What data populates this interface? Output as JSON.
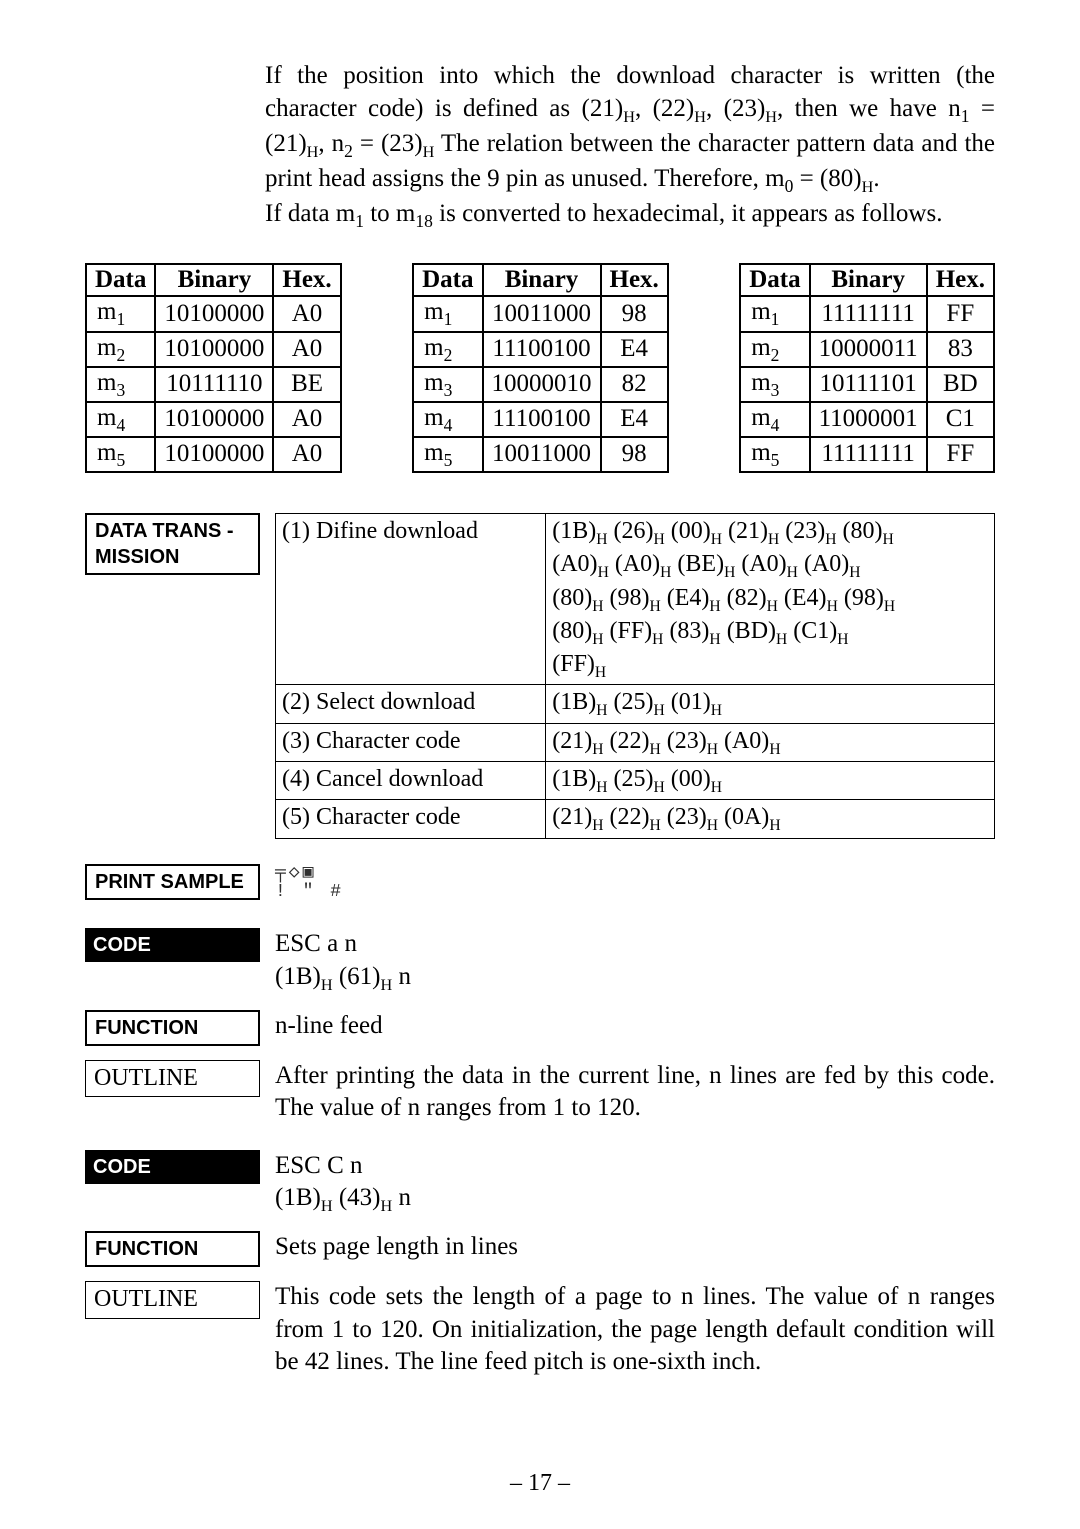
{
  "intro": {
    "p1_a": "If the position into which the download character is written (the character code)  is defined as (21)",
    "p1_b": ",  (22)",
    "p1_c": ",  (23)",
    "p1_d": ",  then we have n",
    "p1_e": " = (21)",
    "p1_f": ", n",
    "p1_g": " = (23)",
    "p1_h": " The relation between the character pattern data and the print head assigns the 9 pin as unused. Therefore, m",
    "p1_i": " = (80)",
    "p1_j": ".",
    "p2_a": "If data m",
    "p2_b": " to m",
    "p2_c": " is converted to hexadecimal, it appears as follows."
  },
  "binary_tables": {
    "headers": [
      "Data",
      "Binary",
      "Hex."
    ],
    "t1": [
      {
        "d": "m",
        "s": "1",
        "b": "10100000",
        "h": "A0"
      },
      {
        "d": "m",
        "s": "2",
        "b": "10100000",
        "h": "A0"
      },
      {
        "d": "m",
        "s": "3",
        "b": "10111110",
        "h": "BE"
      },
      {
        "d": "m",
        "s": "4",
        "b": "10100000",
        "h": "A0"
      },
      {
        "d": "m",
        "s": "5",
        "b": "10100000",
        "h": "A0"
      }
    ],
    "t2": [
      {
        "d": "m",
        "s": "1",
        "b": "10011000",
        "h": "98"
      },
      {
        "d": "m",
        "s": "2",
        "b": "11100100",
        "h": "E4"
      },
      {
        "d": "m",
        "s": "3",
        "b": "10000010",
        "h": "82"
      },
      {
        "d": "m",
        "s": "4",
        "b": "11100100",
        "h": "E4"
      },
      {
        "d": "m",
        "s": "5",
        "b": "10011000",
        "h": "98"
      }
    ],
    "t3": [
      {
        "d": "m",
        "s": "1",
        "b": "11111111",
        "h": "FF"
      },
      {
        "d": "m",
        "s": "2",
        "b": "10000011",
        "h": "83"
      },
      {
        "d": "m",
        "s": "3",
        "b": "10111101",
        "h": "BD"
      },
      {
        "d": "m",
        "s": "4",
        "b": "11000001",
        "h": "C1"
      },
      {
        "d": "m",
        "s": "5",
        "b": "11111111",
        "h": "FF"
      }
    ]
  },
  "data_trans": {
    "label_l1": "DATA  TRANS -",
    "label_l2": "MISSION",
    "rows": [
      {
        "l": "(1) Difine download",
        "r_segs": [
          [
            [
              "(1B)",
              "H"
            ],
            [
              " (26)",
              "H"
            ],
            [
              " (00)",
              "H"
            ],
            [
              " (21)",
              "H"
            ],
            [
              " (23)",
              "H"
            ],
            [
              " (80)",
              "H"
            ]
          ],
          [
            [
              "(A0)",
              "H"
            ],
            [
              " (A0)",
              "H"
            ],
            [
              " (BE)",
              "H"
            ],
            [
              " (A0)",
              "H"
            ],
            [
              " (A0)",
              "H"
            ]
          ],
          [
            [
              "(80)",
              "H"
            ],
            [
              " (98)",
              "H"
            ],
            [
              " (E4)",
              "H"
            ],
            [
              " (82)",
              "H"
            ],
            [
              " (E4)",
              "H"
            ],
            [
              " (98)",
              "H"
            ]
          ],
          [
            [
              "(80)",
              "H"
            ],
            [
              " (FF)",
              "H"
            ],
            [
              " (83)",
              "H"
            ],
            [
              " (BD)",
              "H"
            ],
            [
              " (C1)",
              "H"
            ]
          ],
          [
            [
              "(FF)",
              "H"
            ]
          ]
        ]
      },
      {
        "l": "(2) Select download",
        "r_segs": [
          [
            [
              "(1B)",
              "H"
            ],
            [
              " (25)",
              "H"
            ],
            [
              " (01)",
              "H"
            ]
          ]
        ]
      },
      {
        "l": "(3) Character code",
        "r_segs": [
          [
            [
              "(21)",
              "H"
            ],
            [
              " (22)",
              "H"
            ],
            [
              " (23)",
              "H"
            ],
            [
              " (A0)",
              "H"
            ]
          ]
        ]
      },
      {
        "l": "(4) Cancel download",
        "r_segs": [
          [
            [
              "(1B)",
              "H"
            ],
            [
              " (25)",
              "H"
            ],
            [
              " (00)",
              "H"
            ]
          ]
        ]
      },
      {
        "l": "(5) Character code",
        "r_segs": [
          [
            [
              "(21)",
              "H"
            ],
            [
              " (22)",
              "H"
            ],
            [
              " (23)",
              "H"
            ],
            [
              " (0A)",
              "H"
            ]
          ]
        ]
      }
    ]
  },
  "print_sample": {
    "label": "PRINT SAMPLE",
    "line1": "╤◇▣",
    "line2": "! \" #"
  },
  "code1": {
    "code_label": "CODE",
    "code_text_a": "ESC a n",
    "code_text_b_pre": "(1B)",
    "code_text_b_mid": " (61)",
    "code_text_b_suf": " n",
    "function_label": "FUNCTION",
    "function_text": "n-line feed",
    "outline_label": "OUTLINE",
    "outline_text": "After printing the data in the current line, n lines are fed by this code. The value of n ranges from 1 to 120."
  },
  "code2": {
    "code_label": "CODE",
    "code_text_a": "ESC C n",
    "code_text_b_pre": "(1B)",
    "code_text_b_mid": " (43)",
    "code_text_b_suf": " n",
    "function_label": "FUNCTION",
    "function_text": "Sets page length in lines",
    "outline_label": "OUTLINE",
    "outline_text": "This code sets the length of a page to n lines. The value of n ranges from 1 to 120. On initialization, the page length default condition will be 42 lines. The line feed pitch is one-sixth inch."
  },
  "page_number": "– 17 –"
}
